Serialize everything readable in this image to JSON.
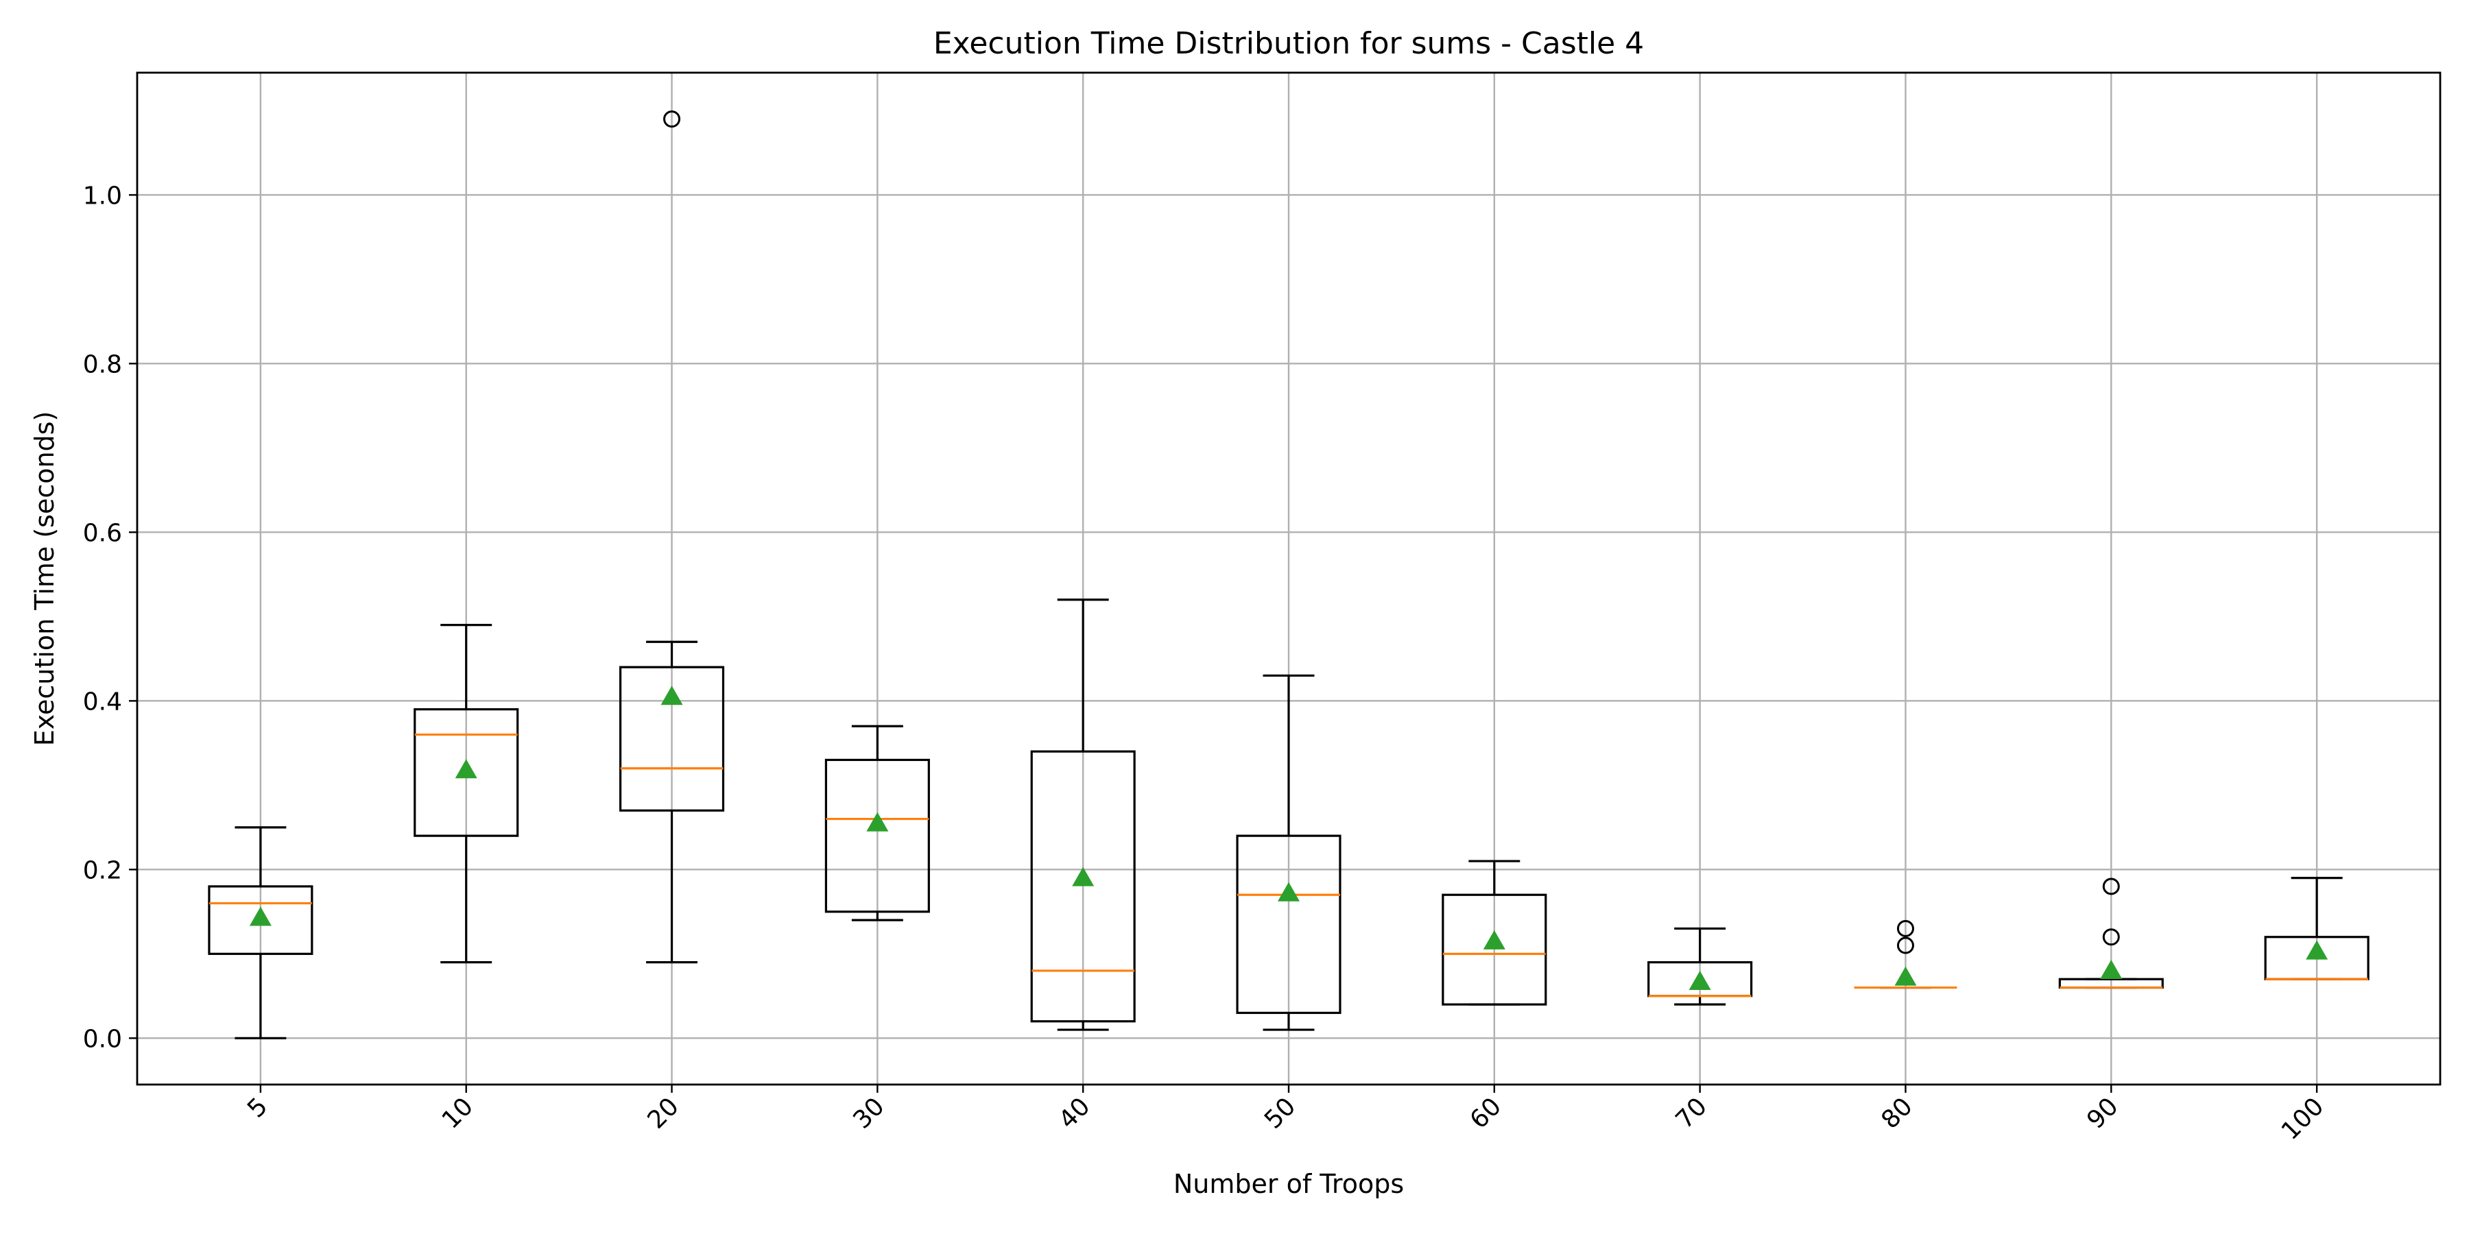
{
  "chart_data": {
    "type": "box",
    "title": "Execution Time Distribution for sums - Castle 4",
    "xlabel": "Number of Troops",
    "ylabel": "Execution Time (seconds)",
    "ylim": [
      -0.055,
      1.145
    ],
    "yticks": [
      0.0,
      0.2,
      0.4,
      0.6,
      0.8,
      1.0
    ],
    "ytick_labels": [
      "0.0",
      "0.2",
      "0.4",
      "0.6",
      "0.8",
      "1.0"
    ],
    "grid": true,
    "legend": "none",
    "colors": {
      "median": "#ff7f0e",
      "mean": "#2ca02c",
      "box": "#000000",
      "grid": "#b0b0b0"
    },
    "categories": [
      "5",
      "10",
      "20",
      "30",
      "40",
      "50",
      "60",
      "70",
      "80",
      "90",
      "100"
    ],
    "boxes": [
      {
        "whisker_low": 0.0,
        "q1": 0.1,
        "median": 0.16,
        "q3": 0.18,
        "whisker_high": 0.25,
        "mean": 0.143,
        "fliers": []
      },
      {
        "whisker_low": 0.09,
        "q1": 0.24,
        "median": 0.36,
        "q3": 0.39,
        "whisker_high": 0.49,
        "mean": 0.318,
        "fliers": []
      },
      {
        "whisker_low": 0.09,
        "q1": 0.27,
        "median": 0.32,
        "q3": 0.44,
        "whisker_high": 0.47,
        "mean": 0.405,
        "fliers": [
          1.09
        ]
      },
      {
        "whisker_low": 0.14,
        "q1": 0.15,
        "median": 0.26,
        "q3": 0.33,
        "whisker_high": 0.37,
        "mean": 0.255,
        "fliers": []
      },
      {
        "whisker_low": 0.01,
        "q1": 0.02,
        "median": 0.08,
        "q3": 0.34,
        "whisker_high": 0.52,
        "mean": 0.19,
        "fliers": []
      },
      {
        "whisker_low": 0.01,
        "q1": 0.03,
        "median": 0.17,
        "q3": 0.24,
        "whisker_high": 0.43,
        "mean": 0.172,
        "fliers": []
      },
      {
        "whisker_low": 0.04,
        "q1": 0.04,
        "median": 0.1,
        "q3": 0.17,
        "whisker_high": 0.21,
        "mean": 0.115,
        "fliers": []
      },
      {
        "whisker_low": 0.04,
        "q1": 0.05,
        "median": 0.05,
        "q3": 0.09,
        "whisker_high": 0.13,
        "mean": 0.067,
        "fliers": []
      },
      {
        "whisker_low": 0.06,
        "q1": 0.06,
        "median": 0.06,
        "q3": 0.06,
        "whisker_high": 0.06,
        "mean": 0.072,
        "fliers": [
          0.11,
          0.13
        ]
      },
      {
        "whisker_low": 0.06,
        "q1": 0.06,
        "median": 0.06,
        "q3": 0.07,
        "whisker_high": 0.07,
        "mean": 0.08,
        "fliers": [
          0.12,
          0.18
        ]
      },
      {
        "whisker_low": 0.07,
        "q1": 0.07,
        "median": 0.07,
        "q3": 0.12,
        "whisker_high": 0.19,
        "mean": 0.103,
        "fliers": []
      }
    ]
  }
}
